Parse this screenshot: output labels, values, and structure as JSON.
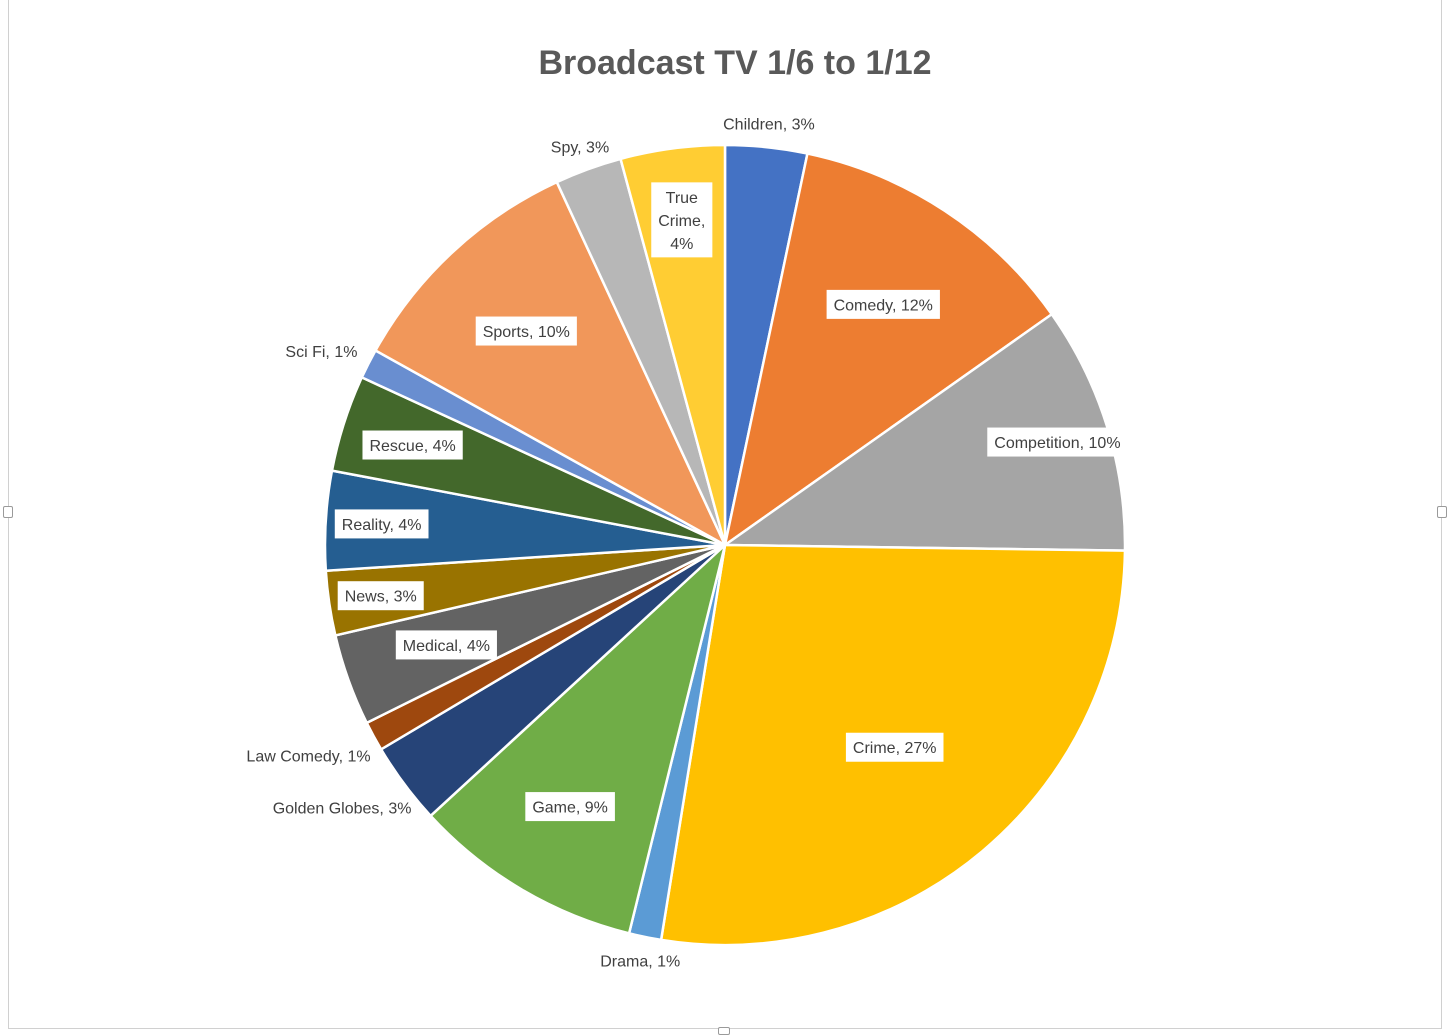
{
  "chart_data": {
    "type": "pie",
    "title": "Broadcast TV 1/6 to 1/12",
    "slices": [
      {
        "name": "Children",
        "label": "Children, 3%",
        "value": 3.3,
        "color": "#4472C4"
      },
      {
        "name": "Comedy",
        "label": "Comedy, 12%",
        "value": 11.9,
        "color": "#ED7D31"
      },
      {
        "name": "Competition",
        "label": "Competition, 10%",
        "value": 10.0,
        "color": "#A5A5A5"
      },
      {
        "name": "Crime",
        "label": "Crime, 27%",
        "value": 27.3,
        "color": "#FFC000"
      },
      {
        "name": "Drama",
        "label": "Drama, 1%",
        "value": 1.3,
        "color": "#5B9BD5"
      },
      {
        "name": "Game",
        "label": "Game, 9%",
        "value": 9.3,
        "color": "#70AD47"
      },
      {
        "name": "Golden Globes",
        "label": "Golden Globes, 3%",
        "value": 3.3,
        "color": "#264478"
      },
      {
        "name": "Law Comedy",
        "label": "Law Comedy, 1%",
        "value": 1.2,
        "color": "#9E480E"
      },
      {
        "name": "Medical",
        "label": "Medical, 4%",
        "value": 3.7,
        "color": "#636363"
      },
      {
        "name": "News",
        "label": "News, 3%",
        "value": 2.6,
        "color": "#997300"
      },
      {
        "name": "Reality",
        "label": "Reality, 4%",
        "value": 4.0,
        "color": "#255E91"
      },
      {
        "name": "Rescue",
        "label": "Rescue, 4%",
        "value": 3.9,
        "color": "#43682B"
      },
      {
        "name": "Sci Fi",
        "label": "Sci Fi, 1%",
        "value": 1.2,
        "color": "#698ED0"
      },
      {
        "name": "Sports",
        "label": "Sports, 10%",
        "value": 10.0,
        "color": "#F1975A"
      },
      {
        "name": "Spy",
        "label": "Spy, 3%",
        "value": 2.7,
        "color": "#B7B7B7"
      },
      {
        "name": "True Crime",
        "label": "True Crime, 4%",
        "label_lines": [
          "True",
          "Crime,",
          "4%"
        ],
        "value": 4.2,
        "color": "#FFCD33"
      }
    ]
  }
}
